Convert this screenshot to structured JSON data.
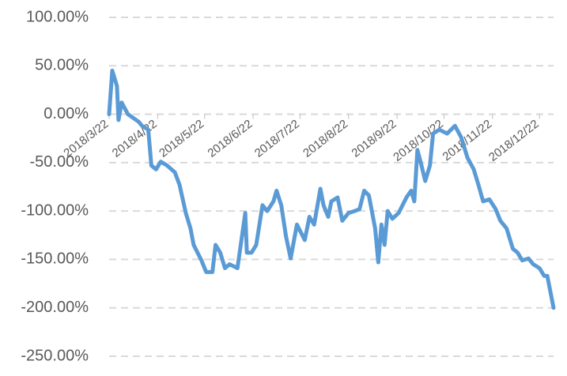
{
  "chart_data": {
    "type": "line",
    "x": [
      "2018/3/22",
      "2018/3/24",
      "2018/3/27",
      "2018/3/28",
      "2018/3/30",
      "2018/4/3",
      "2018/4/10",
      "2018/4/12",
      "2018/4/16",
      "2018/4/18",
      "2018/4/21",
      "2018/4/24",
      "2018/4/28",
      "2018/5/3",
      "2018/5/6",
      "2018/5/10",
      "2018/5/13",
      "2018/5/15",
      "2018/5/20",
      "2018/5/23",
      "2018/5/27",
      "2018/5/29",
      "2018/6/1",
      "2018/6/4",
      "2018/6/7",
      "2018/6/12",
      "2018/6/17",
      "2018/6/18",
      "2018/6/21",
      "2018/6/24",
      "2018/6/28",
      "2018/7/1",
      "2018/7/5",
      "2018/7/7",
      "2018/7/10",
      "2018/7/13",
      "2018/7/16",
      "2018/7/20",
      "2018/7/25",
      "2018/7/28",
      "2018/7/31",
      "2018/8/4",
      "2018/8/6",
      "2018/8/9",
      "2018/8/11",
      "2018/8/15",
      "2018/8/18",
      "2018/8/22",
      "2018/8/26",
      "2018/8/29",
      "2018/9/1",
      "2018/9/4",
      "2018/9/8",
      "2018/9/10",
      "2018/9/12",
      "2018/9/14",
      "2018/9/16",
      "2018/9/19",
      "2018/9/23",
      "2018/9/28",
      "2018/10/1",
      "2018/10/3",
      "2018/10/5",
      "2018/10/7",
      "2018/10/10",
      "2018/10/13",
      "2018/10/15",
      "2018/10/19",
      "2018/10/24",
      "2018/10/29",
      "2018/11/2",
      "2018/11/6",
      "2018/11/10",
      "2018/11/13",
      "2018/11/16",
      "2018/11/20",
      "2018/11/24",
      "2018/11/27",
      "2018/12/1",
      "2018/12/5",
      "2018/12/8",
      "2018/12/11",
      "2018/12/15",
      "2018/12/18",
      "2018/12/22",
      "2018/12/25",
      "2018/12/27",
      "2018/12/31"
    ],
    "series": [
      {
        "color": "#5b9bd5",
        "values": [
          0,
          45,
          29,
          -6,
          12,
          0,
          -8,
          -12,
          -16,
          -53,
          -57,
          -49,
          -53,
          -60,
          -73,
          -102,
          -118,
          -135,
          -151,
          -163,
          -163,
          -135,
          -143,
          -159,
          -155,
          -159,
          -102,
          -143,
          -143,
          -135,
          -94,
          -100,
          -90,
          -79,
          -94,
          -126,
          -149,
          -114,
          -130,
          -106,
          -114,
          -77,
          -94,
          -106,
          -90,
          -86,
          -110,
          -102,
          -100,
          -98,
          -79,
          -84,
          -118,
          -153,
          -114,
          -135,
          -100,
          -108,
          -102,
          -86,
          -79,
          -90,
          -37,
          -49,
          -69,
          -53,
          -20,
          -16,
          -20,
          -12,
          -24,
          -45,
          -57,
          -73,
          -90,
          -88,
          -98,
          -110,
          -118,
          -139,
          -143,
          -151,
          -149,
          -155,
          -159,
          -167,
          -167,
          -200
        ]
      }
    ],
    "xlim": [
      "2018/3/22",
      "2018/12/31"
    ],
    "xticks": [
      "2018/3/22",
      "2018/4/22",
      "2018/5/22",
      "2018/6/22",
      "2018/7/22",
      "2018/8/22",
      "2018/9/22",
      "2018/10/22",
      "2018/11/22",
      "2018/12/22"
    ],
    "ylim": [
      -250,
      100
    ],
    "yticks": [
      {
        "value": 100,
        "label": "100.00%"
      },
      {
        "value": 50,
        "label": "50.00%"
      },
      {
        "value": 0,
        "label": "0.00%"
      },
      {
        "value": -50,
        "label": "-50.00%"
      },
      {
        "value": -100,
        "label": "-100.00%"
      },
      {
        "value": -150,
        "label": "-150.00%"
      },
      {
        "value": -200,
        "label": "-200.00%"
      },
      {
        "value": -250,
        "label": "-250.00%"
      }
    ],
    "grid": true
  }
}
